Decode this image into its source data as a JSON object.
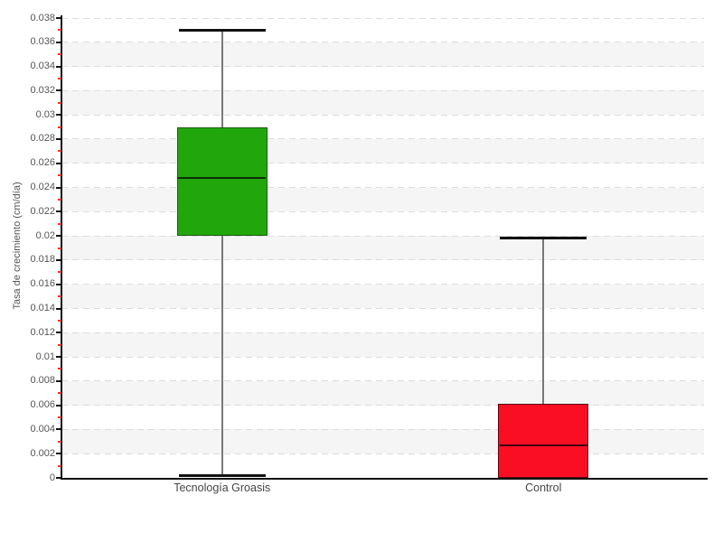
{
  "chart_data": {
    "type": "boxplot",
    "title": "",
    "xlabel": "",
    "ylabel": "Tasa de crecimiento (cm/día)",
    "ylim": [
      0,
      0.038
    ],
    "ytick_step": 0.002,
    "minor_tick_step": 0.001,
    "ytick_labels": [
      "0",
      "0.002",
      "0.004",
      "0.006",
      "0.008",
      "0.01",
      "0.012",
      "0.014",
      "0.016",
      "0.018",
      "0.02",
      "0.022",
      "0.024",
      "0.026",
      "0.028",
      "0.03",
      "0.032",
      "0.034",
      "0.036",
      "0.038"
    ],
    "grid": "horizontal dashed lines every 0.002, alternating background bands",
    "legend_position": "none",
    "categories": [
      "Tecnología Groasis",
      "Control"
    ],
    "boxes": [
      {
        "label": "Tecnología Groasis",
        "min": 0.0002,
        "q1": 0.02,
        "median": 0.0248,
        "q3": 0.029,
        "max": 0.037,
        "fill": "#21a70c",
        "border": "#1c5a10",
        "median_color": "#0b2d04"
      },
      {
        "label": "Control",
        "min": 0.0,
        "q1": 0.0,
        "median": 0.0027,
        "q3": 0.0061,
        "max": 0.0198,
        "fill": "#fa0e23",
        "border": "#5a0b12",
        "median_color": "#420309"
      }
    ],
    "colors": {
      "band_gray": "#f5f5f5",
      "band_white": "#ffffff",
      "gridline": "#dcdcdc",
      "axis": "#111111",
      "major_tick": "#111111",
      "minor_tick": "#e53527",
      "tick_label": "#555555",
      "axis_title": "#555555",
      "category_label": "#454545",
      "whisker_line": "#787878",
      "whisker_cap": "#111111"
    }
  }
}
